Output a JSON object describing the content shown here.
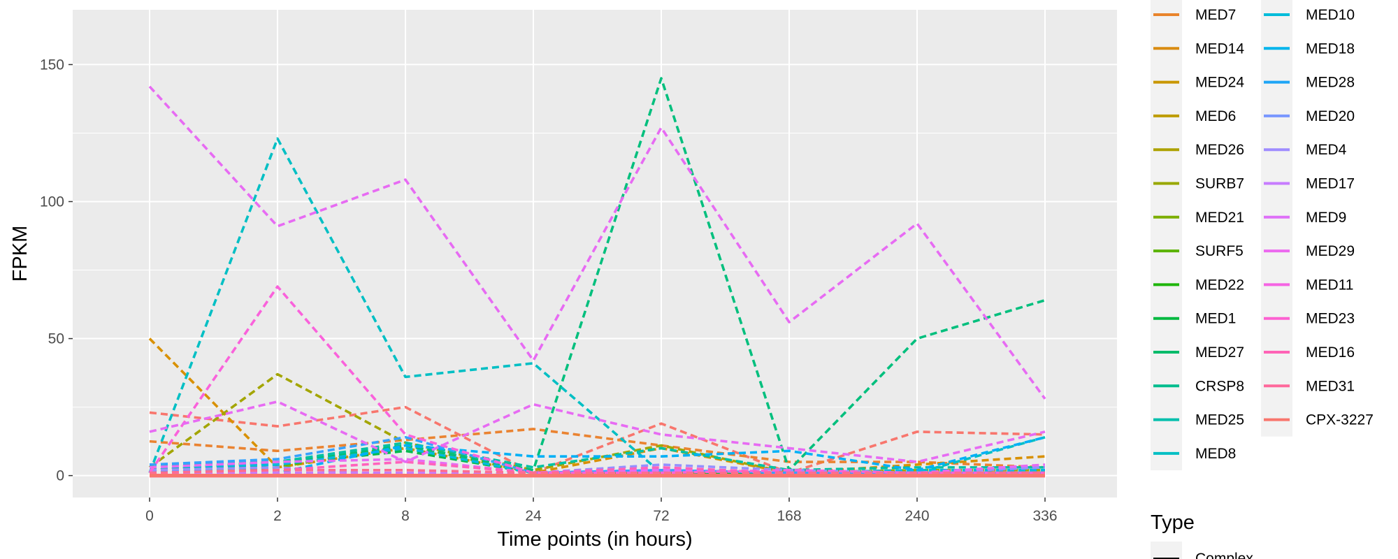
{
  "chart_data": {
    "type": "line",
    "xlabel": "Time points (in hours)",
    "ylabel": "FPKM",
    "categories": [
      "0",
      "2",
      "8",
      "24",
      "72",
      "168",
      "240",
      "336"
    ],
    "y_ticks": [
      0,
      50,
      100,
      150
    ],
    "ylim": [
      -8,
      170
    ],
    "grid": true,
    "legend_placement": "right",
    "line_style": "dashed",
    "series": [
      {
        "name": "MED7",
        "color": "#F8766D",
        "values": [
          23,
          18,
          25,
          1,
          19,
          1,
          16,
          15
        ]
      },
      {
        "name": "MED14",
        "color": "#EA8331",
        "values": [
          12.5,
          9,
          13,
          17,
          11,
          5,
          5,
          3
        ]
      },
      {
        "name": "MED24",
        "color": "#D89000",
        "values": [
          50,
          3,
          10,
          1,
          10,
          1,
          4,
          7
        ]
      },
      {
        "name": "MED6",
        "color": "#C09B00",
        "values": [
          3,
          5,
          10,
          1,
          1,
          1,
          1,
          1
        ]
      },
      {
        "name": "MED26",
        "color": "#A3A500",
        "values": [
          3,
          37,
          12,
          2,
          11,
          1,
          2,
          2
        ]
      },
      {
        "name": "SURB7",
        "color": "#7CAE00",
        "values": [
          1,
          3,
          11,
          1,
          1,
          1,
          1,
          1
        ]
      },
      {
        "name": "MED21",
        "color": "#39B600",
        "values": [
          2,
          5,
          10,
          1,
          1,
          1,
          2,
          2
        ]
      },
      {
        "name": "SURF5",
        "color": "#00BB4E",
        "values": [
          2,
          4,
          9,
          1,
          1,
          1,
          1,
          1
        ]
      },
      {
        "name": "MED22",
        "color": "#00BF7D",
        "values": [
          2,
          5,
          11,
          2,
          145,
          2,
          50,
          64
        ]
      },
      {
        "name": "MED1",
        "color": "#00C1A3",
        "values": [
          4,
          5,
          12,
          3,
          10,
          2,
          3,
          3
        ]
      },
      {
        "name": "MED27",
        "color": "#00BFC4",
        "values": [
          1,
          123,
          36,
          41,
          1,
          1,
          1,
          14
        ]
      },
      {
        "name": "CRSP8",
        "color": "#00BAE0",
        "values": [
          3,
          4,
          10,
          1,
          2,
          1,
          2,
          2
        ]
      },
      {
        "name": "MED25",
        "color": "#00B0F6",
        "values": [
          2,
          1,
          11,
          7,
          7,
          9,
          2,
          14
        ]
      },
      {
        "name": "MED8",
        "color": "#35A2FF",
        "values": [
          4,
          6,
          14,
          1,
          2,
          1,
          1,
          1
        ]
      },
      {
        "name": "MED10",
        "color": "#9590FF",
        "values": [
          2,
          3,
          0,
          1,
          4,
          2,
          1,
          3
        ]
      },
      {
        "name": "MED18",
        "color": "#C77CFF",
        "values": [
          1,
          1,
          1,
          1,
          1,
          1,
          1,
          1
        ]
      },
      {
        "name": "MED28",
        "color": "#E76BF3",
        "values": [
          3,
          5,
          6,
          1,
          2,
          1,
          1,
          4
        ]
      },
      {
        "name": "MED20",
        "color": "#FA62DB",
        "values": [
          1,
          69,
          15,
          1,
          1,
          2,
          1,
          1
        ]
      },
      {
        "name": "MED4",
        "color": "#FF62BC",
        "values": [
          1,
          2,
          5,
          1,
          3,
          1,
          1,
          1
        ]
      },
      {
        "name": "MED17",
        "color": "#FF6C91",
        "values": [
          1,
          2,
          2,
          1,
          1,
          1,
          1,
          1
        ]
      },
      {
        "name": "MED9",
        "color": "#E76BF3",
        "values": [
          16,
          27,
          5,
          26,
          15,
          10,
          5,
          16
        ]
      },
      {
        "name": "MED29",
        "color": "#E76BF3",
        "values": [
          142,
          91,
          108,
          42,
          127,
          56,
          92,
          28
        ]
      },
      {
        "name": "MED11",
        "color": "#FA62DB",
        "values": [
          0,
          0,
          0,
          0,
          0,
          0,
          0,
          0
        ]
      },
      {
        "name": "MED23",
        "color": "#FF62BC",
        "values": [
          0,
          0,
          0,
          0,
          0,
          0,
          0,
          0
        ]
      },
      {
        "name": "MED16",
        "color": "#FF6C91",
        "values": [
          0,
          0,
          0,
          0,
          0,
          0,
          0,
          0
        ]
      },
      {
        "name": "MED31",
        "color": "#FF6C91",
        "values": [
          0,
          0,
          0,
          0,
          0,
          0,
          0,
          0
        ]
      },
      {
        "name": "CPX-3227",
        "color": "#F8766D",
        "values": [
          0,
          0,
          0,
          0,
          0,
          0,
          0,
          0
        ]
      }
    ]
  },
  "legend": {
    "col1": [
      {
        "label": "MED7",
        "color": "#E9842C"
      },
      {
        "label": "MED14",
        "color": "#D98C12"
      },
      {
        "label": "MED24",
        "color": "#C99700"
      },
      {
        "label": "MED6",
        "color": "#BE9C00"
      },
      {
        "label": "MED26",
        "color": "#ADA200"
      },
      {
        "label": "SURB7",
        "color": "#98A800"
      },
      {
        "label": "MED21",
        "color": "#7CAE00"
      },
      {
        "label": "SURF5",
        "color": "#5BB300"
      },
      {
        "label": "MED22",
        "color": "#1FB50B"
      },
      {
        "label": "MED1",
        "color": "#00B83F"
      },
      {
        "label": "MED27",
        "color": "#00BB6A"
      },
      {
        "label": "CRSP8",
        "color": "#00BD8E"
      },
      {
        "label": "MED25",
        "color": "#00BFAC"
      },
      {
        "label": "MED8",
        "color": "#00BFC4"
      }
    ],
    "col2": [
      {
        "label": "MED10",
        "color": "#00BCDA"
      },
      {
        "label": "MED18",
        "color": "#00B5EC"
      },
      {
        "label": "MED28",
        "color": "#1EA5F6"
      },
      {
        "label": "MED20",
        "color": "#7997FF"
      },
      {
        "label": "MED4",
        "color": "#9F8CFF"
      },
      {
        "label": "MED17",
        "color": "#C77CFF"
      },
      {
        "label": "MED9",
        "color": "#DE70F8"
      },
      {
        "label": "MED29",
        "color": "#EC69EF"
      },
      {
        "label": "MED11",
        "color": "#F564E3"
      },
      {
        "label": "MED23",
        "color": "#FD61D1"
      },
      {
        "label": "MED16",
        "color": "#FF63B6"
      },
      {
        "label": "MED31",
        "color": "#FF699C"
      },
      {
        "label": "CPX-3227",
        "color": "#F8766D"
      }
    ],
    "type_title": "Type",
    "type_items": [
      {
        "label": "Complex",
        "color": "#000000"
      }
    ]
  },
  "colors": {
    "panel_bg": "#EBEBEB",
    "grid": "#FFFFFF",
    "legend_key_bg": "#F2F2F2"
  }
}
